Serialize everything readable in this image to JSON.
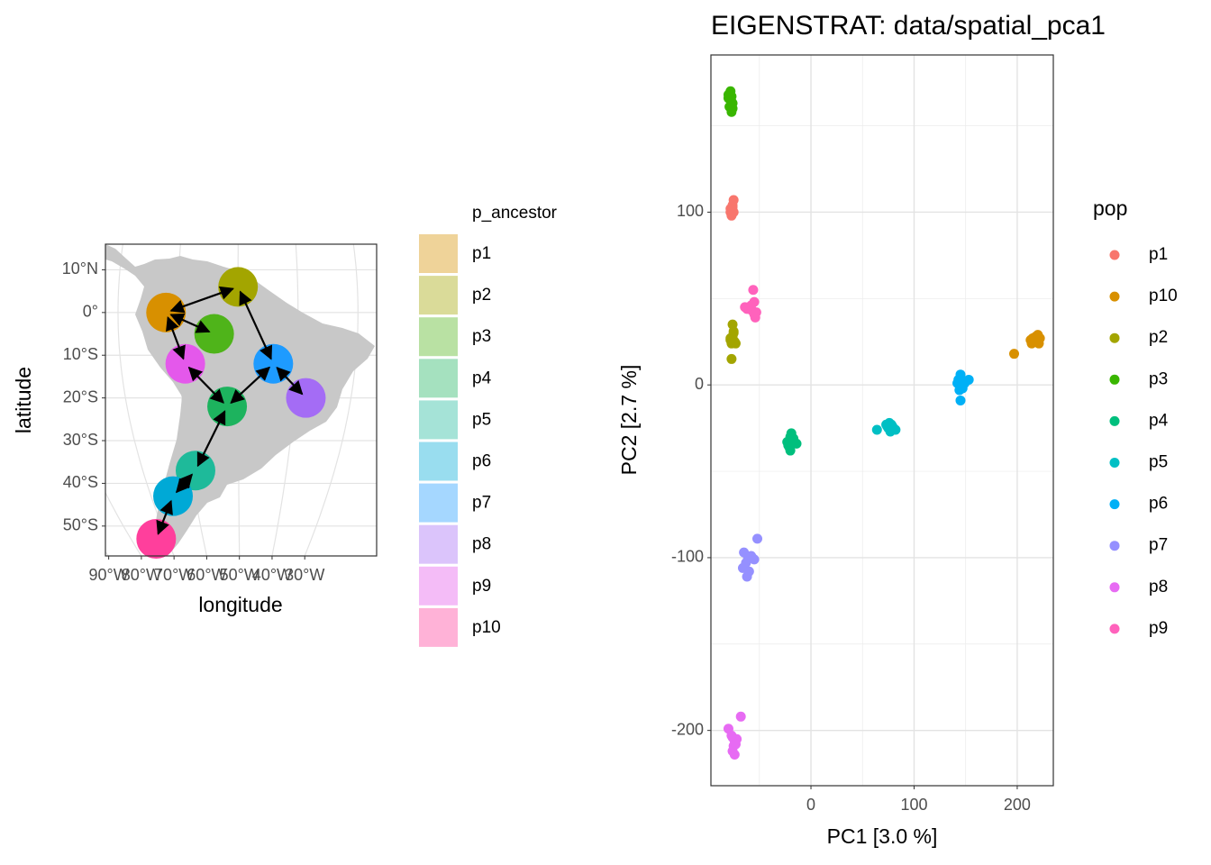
{
  "chart_data": [
    {
      "type": "map",
      "xlabel": "longitude",
      "ylabel": "latitude",
      "legend_title": "p_ancestor",
      "legend": "right",
      "categories": [
        "p1",
        "p2",
        "p3",
        "p4",
        "p5",
        "p6",
        "p7",
        "p8",
        "p9",
        "p10"
      ],
      "x": [
        -62,
        -50,
        -54,
        -52,
        -59,
        -65,
        -44,
        -38,
        -59,
        -73
      ],
      "values": [
        0,
        6,
        -5,
        -22,
        -37,
        -43,
        -12,
        -20,
        -12,
        -53
      ],
      "colors": [
        "#D89000",
        "#A3A500",
        "#4FB41A",
        "#1DB35E",
        "#1EBA9A",
        "#00A9D6",
        "#1E9BFF",
        "#A46CF5",
        "#E458EB",
        "#FF3F9C"
      ],
      "links": [
        [
          "p1",
          "p2"
        ],
        [
          "p1",
          "p3"
        ],
        [
          "p1",
          "p9"
        ],
        [
          "p9",
          "p4"
        ],
        [
          "p4",
          "p7"
        ],
        [
          "p7",
          "p2"
        ],
        [
          "p7",
          "p8"
        ],
        [
          "p4",
          "p5"
        ],
        [
          "p5",
          "p6"
        ],
        [
          "p6",
          "p10"
        ]
      ],
      "xlim": [
        -91,
        -8
      ],
      "ylim": [
        -57,
        16
      ],
      "xticks": [
        {
          "value": -90,
          "label": "90°W"
        },
        {
          "value": -80,
          "label": "80°W"
        },
        {
          "value": -70,
          "label": "70°W"
        },
        {
          "value": -60,
          "label": "60°W"
        },
        {
          "value": -50,
          "label": "50°W"
        },
        {
          "value": -40,
          "label": "40°W"
        },
        {
          "value": -30,
          "label": "30°W"
        }
      ],
      "yticks": [
        {
          "value": 10,
          "label": "10°N"
        },
        {
          "value": 0,
          "label": "0°"
        },
        {
          "value": -10,
          "label": "10°S"
        },
        {
          "value": -20,
          "label": "20°S"
        },
        {
          "value": -30,
          "label": "30°S"
        },
        {
          "value": -40,
          "label": "40°S"
        },
        {
          "value": -50,
          "label": "50°S"
        }
      ],
      "grid": true
    },
    {
      "type": "scatter",
      "title": "EIGENSTRAT: data/spatial_pca1",
      "xlabel": "PC1 [3.0 %]",
      "ylabel": "PC2 [2.7 %]",
      "legend_title": "pop",
      "legend": "right",
      "series": [
        {
          "name": "p1",
          "color": "#F8766D",
          "x": [
            -77,
            -76,
            -78,
            -75,
            -77,
            -76,
            -78,
            -77,
            -75,
            -76
          ],
          "values": [
            101,
            103,
            100,
            107,
            99,
            104,
            102,
            98,
            100,
            101
          ]
        },
        {
          "name": "p10",
          "color": "#D89000",
          "x": [
            197,
            213,
            215,
            218,
            220,
            221,
            216,
            219,
            222,
            214
          ],
          "values": [
            18,
            26,
            27,
            28,
            29,
            24,
            25,
            26,
            27,
            24
          ]
        },
        {
          "name": "p2",
          "color": "#A3A500",
          "x": [
            -76,
            -75,
            -78,
            -77,
            -74,
            -73,
            -77,
            -76,
            -75,
            -78
          ],
          "values": [
            35,
            30,
            27,
            24,
            25,
            24,
            15,
            28,
            31,
            26
          ]
        },
        {
          "name": "p3",
          "color": "#39B600",
          "x": [
            -80,
            -78,
            -77,
            -76,
            -79,
            -77,
            -78,
            -76,
            -80,
            -77
          ],
          "values": [
            166,
            170,
            167,
            163,
            161,
            158,
            165,
            160,
            168,
            164
          ]
        },
        {
          "name": "p4",
          "color": "#00BF7D",
          "x": [
            -20,
            -18,
            -22,
            -16,
            -20,
            -19,
            -14,
            -21,
            -17,
            -23
          ],
          "values": [
            -30,
            -32,
            -35,
            -33,
            -38,
            -28,
            -34,
            -36,
            -31,
            -33
          ]
        },
        {
          "name": "p5",
          "color": "#00BFC4",
          "x": [
            64,
            74,
            76,
            78,
            80,
            82,
            75,
            77,
            79,
            73
          ],
          "values": [
            -26,
            -24,
            -22,
            -23,
            -25,
            -26,
            -25,
            -27,
            -24,
            -23
          ]
        },
        {
          "name": "p6",
          "color": "#00B0F6",
          "x": [
            143,
            145,
            146,
            148,
            153,
            144,
            147,
            145,
            149,
            142
          ],
          "values": [
            3,
            6,
            0,
            2,
            3,
            -3,
            -2,
            -9,
            1,
            1
          ]
        },
        {
          "name": "p7",
          "color": "#9590FF",
          "x": [
            -52,
            -65,
            -61,
            -58,
            -55,
            -63,
            -66,
            -60,
            -62,
            -57
          ],
          "values": [
            -89,
            -97,
            -100,
            -99,
            -101,
            -103,
            -106,
            -108,
            -111,
            -100
          ]
        },
        {
          "name": "p8",
          "color": "#E76BF3",
          "x": [
            -68,
            -80,
            -76,
            -74,
            -72,
            -75,
            -76,
            -74,
            -73,
            -77
          ],
          "values": [
            -192,
            -199,
            -204,
            -206,
            -205,
            -209,
            -212,
            -214,
            -208,
            -203
          ]
        },
        {
          "name": "p9",
          "color": "#FF62BC",
          "x": [
            -56,
            -55,
            -64,
            -60,
            -58,
            -55,
            -54,
            -62,
            -57,
            -53
          ],
          "values": [
            55,
            48,
            45,
            44,
            46,
            41,
            39,
            44,
            43,
            42
          ]
        }
      ],
      "xlim": [
        -97,
        235
      ],
      "ylim": [
        -232,
        191
      ],
      "xticks": [
        0,
        100,
        200
      ],
      "yticks": [
        -200,
        -100,
        0,
        100
      ],
      "x_minor_ticks": [
        -50,
        50,
        150
      ],
      "y_minor_ticks": [
        -150,
        -50,
        50,
        150
      ],
      "grid": true
    }
  ]
}
